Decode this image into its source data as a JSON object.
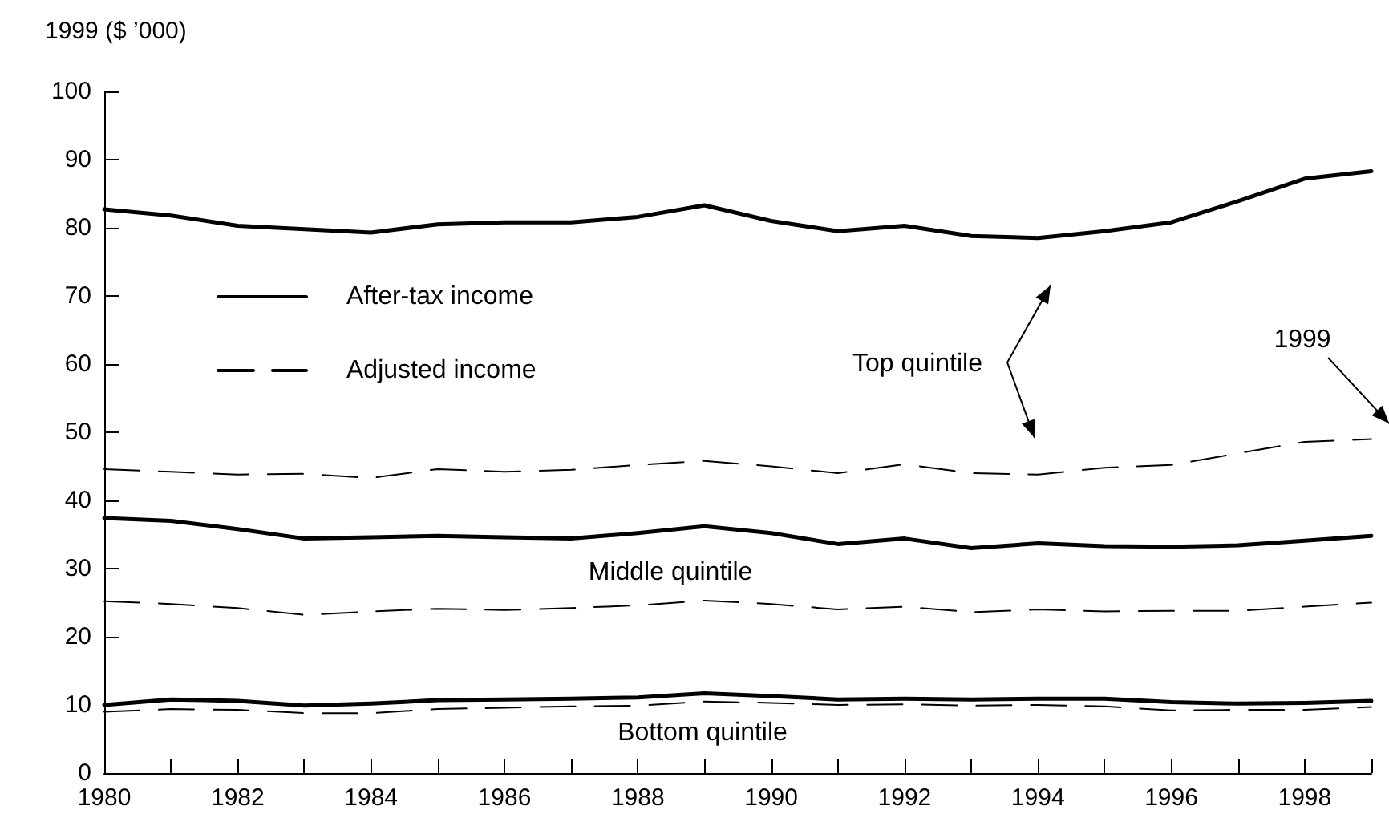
{
  "chart_data": {
    "type": "line",
    "ylabel": "1999 ($ ’000)",
    "x": [
      1980,
      1981,
      1982,
      1983,
      1984,
      1985,
      1986,
      1987,
      1988,
      1989,
      1990,
      1991,
      1992,
      1993,
      1994,
      1995,
      1996,
      1997,
      1998,
      1999
    ],
    "series": [
      {
        "name": "After-tax income",
        "color": "#000000",
        "line_style": "solid",
        "values": [
          82.7,
          81.8,
          80.3,
          79.8,
          79.3,
          80.5,
          80.8,
          80.8,
          81.6,
          83.3,
          81.0,
          79.5,
          80.3,
          78.8,
          78.5,
          79.5,
          80.8,
          83.9,
          87.2,
          88.3
        ]
      },
      {
        "name": "Adjusted income",
        "color": "#000000",
        "line_style": "dashed",
        "values": [
          44.6,
          44.2,
          43.8,
          43.9,
          43.3,
          44.6,
          44.2,
          44.5,
          45.2,
          45.8,
          45.0,
          44.0,
          45.3,
          44.0,
          43.8,
          44.8,
          45.2,
          46.9,
          48.6,
          49.0
        ]
      },
      {
        "color": "#000000",
        "line_style": "solid",
        "values": [
          37.4,
          37.0,
          35.8,
          34.4,
          34.6,
          34.8,
          34.6,
          34.4,
          35.2,
          36.2,
          35.2,
          33.6,
          34.4,
          33.0,
          33.7,
          33.3,
          33.2,
          33.4,
          34.1,
          34.8
        ]
      },
      {
        "color": "#000000",
        "line_style": "dashed",
        "values": [
          25.2,
          24.8,
          24.2,
          23.2,
          23.7,
          24.1,
          23.9,
          24.2,
          24.6,
          25.3,
          24.8,
          24.0,
          24.4,
          23.6,
          24.0,
          23.7,
          23.8,
          23.8,
          24.4,
          25.0
        ]
      },
      {
        "color": "#000000",
        "line_style": "solid",
        "values": [
          10.0,
          10.8,
          10.6,
          9.9,
          10.2,
          10.7,
          10.8,
          10.9,
          11.1,
          11.7,
          11.3,
          10.8,
          10.9,
          10.8,
          10.9,
          10.9,
          10.4,
          10.2,
          10.3,
          10.6
        ]
      },
      {
        "color": "#000000",
        "line_style": "dashed",
        "values": [
          9.0,
          9.4,
          9.3,
          8.8,
          8.8,
          9.4,
          9.6,
          9.8,
          9.9,
          10.5,
          10.3,
          10.0,
          10.1,
          9.9,
          10.0,
          9.8,
          9.2,
          9.3,
          9.3,
          9.7
        ]
      }
    ],
    "xlim": [
      1980,
      1999
    ],
    "xticks": [
      1980,
      {
        "value": 1981,
        "label": null
      },
      1982,
      {
        "value": 1983,
        "label": null
      },
      1984,
      {
        "value": 1985,
        "label": null
      },
      1986,
      {
        "value": 1987,
        "label": null
      },
      1988,
      {
        "value": 1989,
        "label": null
      },
      1990,
      {
        "value": 1991,
        "label": null
      },
      1992,
      {
        "value": 1993,
        "label": null
      },
      1994,
      {
        "value": 1995,
        "label": null
      },
      1996,
      {
        "value": 1997,
        "label": null
      },
      1998,
      {
        "value": 1999,
        "label": null
      }
    ],
    "ylim": [
      0,
      100
    ],
    "yticks": [
      0,
      10,
      20,
      30,
      40,
      50,
      60,
      70,
      80,
      90,
      100
    ],
    "legend": "top left",
    "marker": "none",
    "annotations": [
      "Top quintile",
      "1999",
      "Middle quintile",
      "Bottom quintile"
    ]
  }
}
